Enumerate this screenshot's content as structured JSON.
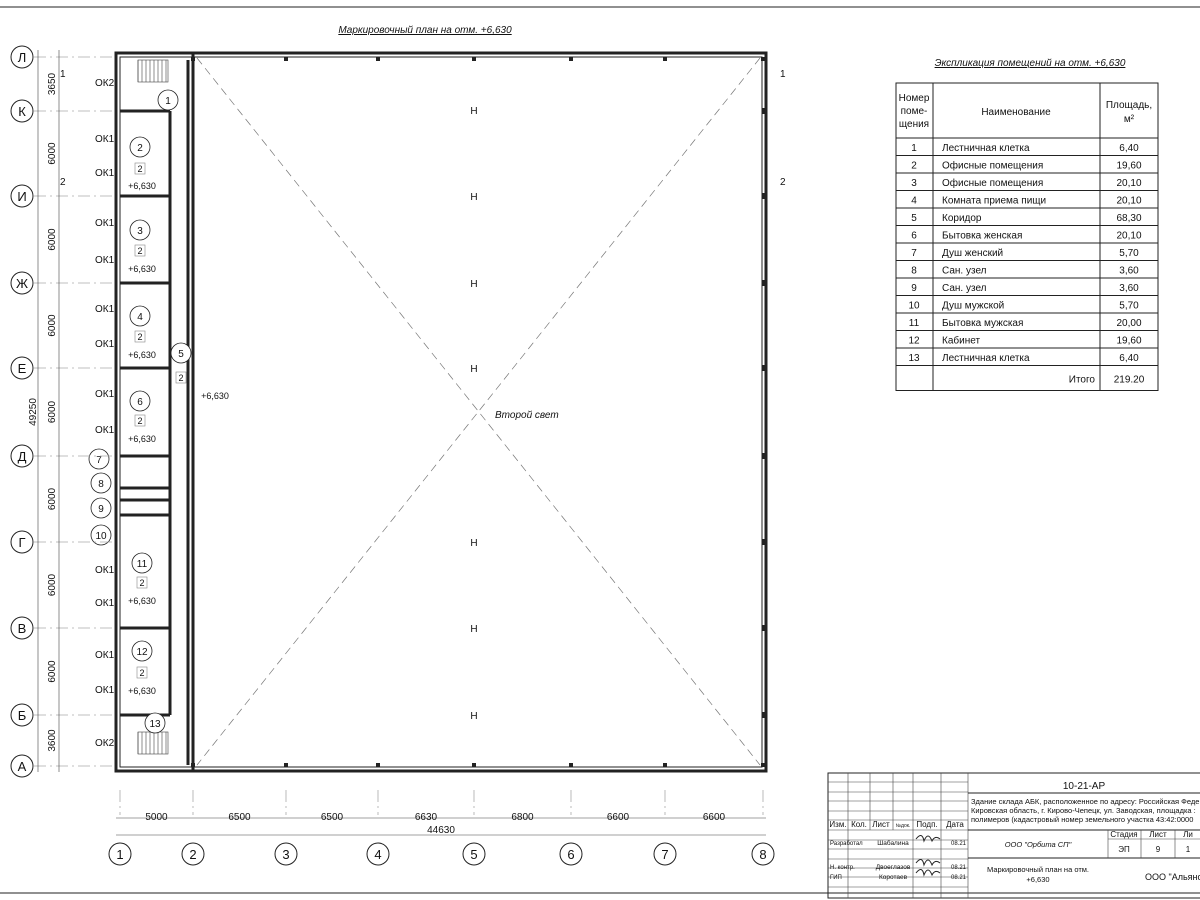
{
  "drawing": {
    "title": "Маркировочный план на отм. +6,630",
    "center_label": "Второй свет",
    "level_mark": "+6,630",
    "section_marks": [
      "1",
      "2"
    ],
    "rows_axes": [
      "Л",
      "К",
      "И",
      "Ж",
      "Е",
      "Д",
      "Г",
      "В",
      "Б",
      "А"
    ],
    "row_dims": [
      "3650",
      "6000",
      "6000",
      "6000",
      "6000",
      "6000",
      "6000",
      "6000",
      "3600"
    ],
    "row_total": "49250",
    "col_axes": [
      "1",
      "2",
      "3",
      "4",
      "5",
      "6",
      "7",
      "8"
    ],
    "col_dims": [
      "5000",
      "6500",
      "6500",
      "6630",
      "6800",
      "6600",
      "6600"
    ],
    "col_total": "44630",
    "room_numbers": [
      "1",
      "2",
      "3",
      "4",
      "5",
      "6",
      "7",
      "8",
      "9",
      "10",
      "11",
      "12",
      "13"
    ],
    "room_tag": "2",
    "window_labels": [
      "ОК2",
      "ОК1",
      "ОК1",
      "ОК1",
      "ОК1",
      "ОК1",
      "ОК1",
      "ОК1",
      "ОК1",
      "ОК1",
      "ОК1",
      "ОК1",
      "ОК1",
      "ОК2"
    ],
    "column_mark": "Н"
  },
  "explication": {
    "title": "Экспликация помещений на отм. +6,630",
    "headers": {
      "num": "Номер поме- щения",
      "name": "Наименование",
      "area": "Площадь, м²"
    },
    "rows": [
      {
        "num": "1",
        "name": "Лестничная клетка",
        "area": "6,40"
      },
      {
        "num": "2",
        "name": "Офисные помещения",
        "area": "19,60"
      },
      {
        "num": "3",
        "name": "Офисные помещения",
        "area": "20,10"
      },
      {
        "num": "4",
        "name": "Комната приема пищи",
        "area": "20,10"
      },
      {
        "num": "5",
        "name": "Коридор",
        "area": "68,30"
      },
      {
        "num": "6",
        "name": "Бытовка женская",
        "area": "20,10"
      },
      {
        "num": "7",
        "name": "Душ женский",
        "area": "5,70"
      },
      {
        "num": "8",
        "name": "Сан. узел",
        "area": "3,60"
      },
      {
        "num": "9",
        "name": "Сан. узел",
        "area": "3,60"
      },
      {
        "num": "10",
        "name": "Душ мужской",
        "area": "5,70"
      },
      {
        "num": "11",
        "name": "Бытовка мужская",
        "area": "20,00"
      },
      {
        "num": "12",
        "name": "Кабинет",
        "area": "19,60"
      },
      {
        "num": "13",
        "name": "Лестничная клетка",
        "area": "6,40"
      }
    ],
    "total_label": "Итого",
    "total_value": "219.20"
  },
  "title_block": {
    "code": "10-21-АР",
    "project_lines": [
      "Здание склада АБК, расположенное по адресу: Российская Феде",
      "Кировская область, г. Кирово-Чепецк, ул. Заводская, площадка :",
      "полимеров (кадастровый номер земельного участка 43:42:0000"
    ],
    "col_headers": [
      "Изм.",
      "Кол.",
      "Лист",
      "№док.",
      "Подп.",
      "Дата"
    ],
    "people": [
      {
        "role": "Разработал",
        "name": "Шабалина",
        "date": "08.21"
      },
      {
        "role": "Н. контр.",
        "name": "Двоеглазов",
        "date": "08.21"
      },
      {
        "role": "ГИП",
        "name": "Коротаев",
        "date": "08.21"
      }
    ],
    "company": "ООО \"Орбита СП\"",
    "stage_header": "Стадия",
    "sheet_header": "Лист",
    "sheets_header": "Ли",
    "stage": "ЭП",
    "sheet": "9",
    "sheets": "1",
    "sheet_title_1": "Маркировочный план на отм.",
    "sheet_title_2": "+6,630",
    "org": "ООО \"Альянс"
  }
}
